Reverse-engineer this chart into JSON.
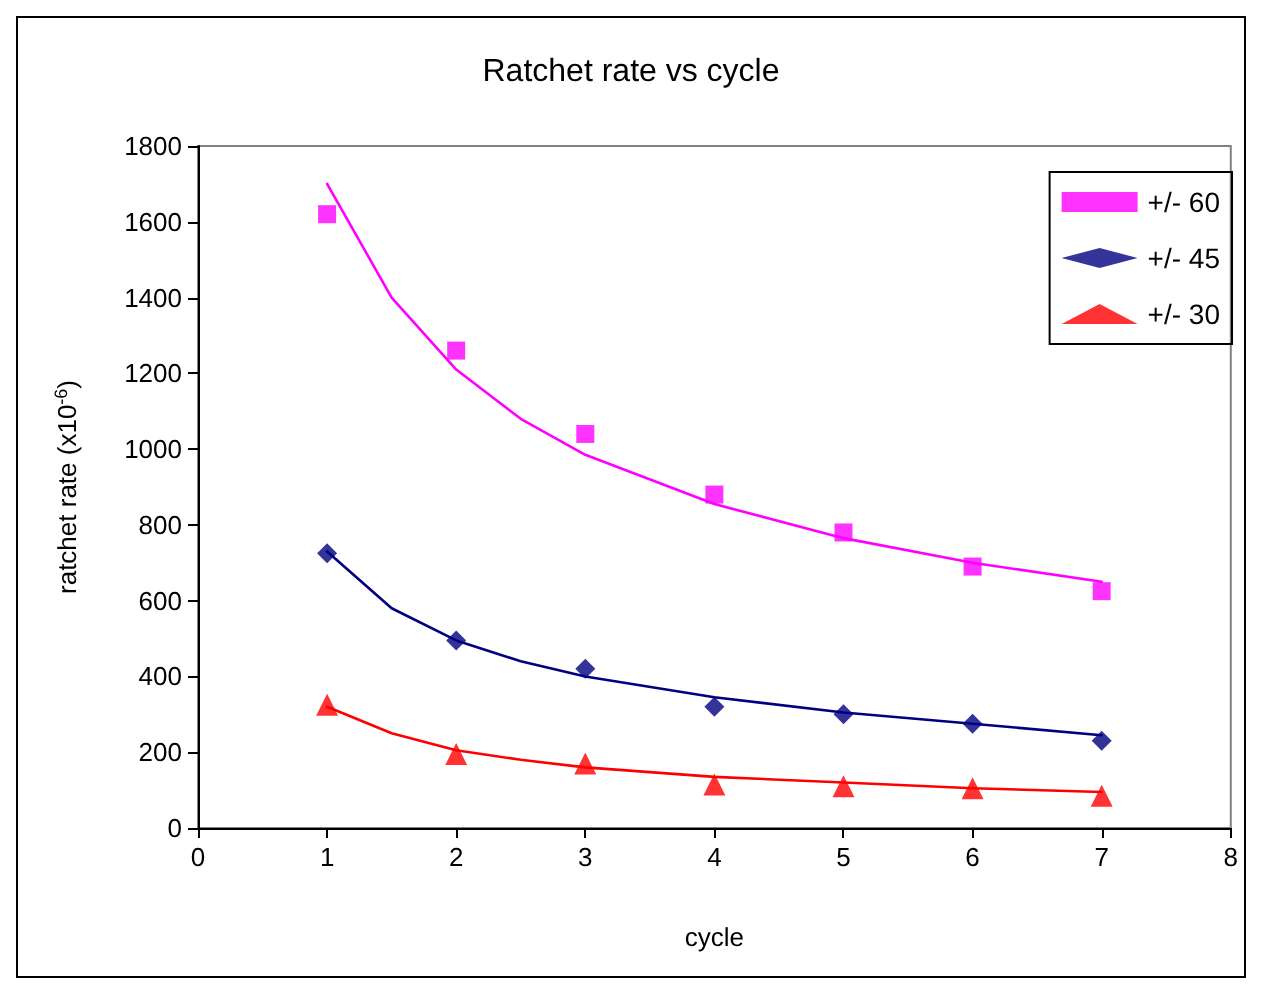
{
  "chart_data": {
    "type": "scatter",
    "title": "Ratchet rate vs cycle",
    "xlabel": "cycle",
    "ylabel": "ratchet rate (x10$^{-6}$)",
    "x": [
      1,
      2,
      3,
      4,
      5,
      6,
      7
    ],
    "series": [
      {
        "name": "+/- 60",
        "color": "#ff00ff",
        "marker": "square",
        "values": [
          1620,
          1260,
          1040,
          880,
          780,
          690,
          625
        ]
      },
      {
        "name": "+/- 45",
        "color": "#000080",
        "marker": "diamond",
        "values": [
          725,
          495,
          420,
          320,
          300,
          275,
          230
        ]
      },
      {
        "name": "+/- 30",
        "color": "#ff0000",
        "marker": "triangle",
        "values": [
          325,
          195,
          170,
          115,
          110,
          105,
          85
        ]
      },
      {
        "type": "line",
        "color": "#ff00ff",
        "marker": "none",
        "x": [
          1,
          1.5,
          2,
          2.5,
          3,
          4,
          5,
          6,
          7
        ],
        "values": [
          1700,
          1400,
          1210,
          1080,
          985,
          855,
          765,
          700,
          650
        ]
      },
      {
        "type": "line",
        "color": "#000080",
        "marker": "none",
        "x": [
          1,
          1.5,
          2,
          2.5,
          3,
          4,
          5,
          6,
          7
        ],
        "values": [
          730,
          580,
          495,
          440,
          400,
          345,
          305,
          275,
          245
        ]
      },
      {
        "type": "line",
        "color": "#ff0000",
        "marker": "none",
        "x": [
          1,
          1.5,
          2,
          2.5,
          3,
          4,
          5,
          6,
          7
        ],
        "values": [
          320,
          250,
          205,
          180,
          160,
          135,
          120,
          105,
          95
        ]
      }
    ],
    "xlim": [
      0,
      8
    ],
    "xticks": [
      0,
      1,
      2,
      3,
      4,
      5,
      6,
      7,
      8
    ],
    "ylim": [
      0,
      1800
    ],
    "yticks": [
      0,
      200,
      400,
      600,
      800,
      1000,
      1200,
      1400,
      1600,
      1800
    ],
    "grid": false,
    "legend": "top right"
  }
}
